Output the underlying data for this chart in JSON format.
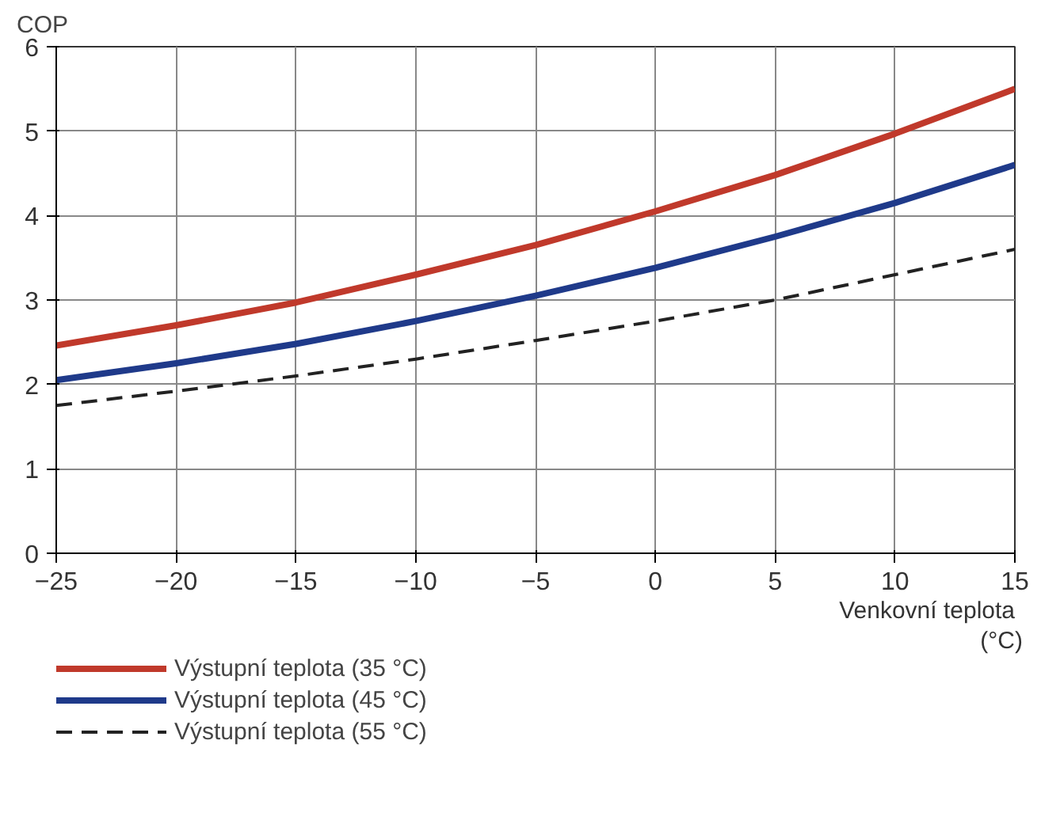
{
  "chart_data": {
    "type": "line",
    "ylabel": "COP",
    "xlabel": "Venkovní teplota\n(°C)",
    "x": [
      -25,
      -20,
      -15,
      -10,
      -5,
      0,
      5,
      10,
      15
    ],
    "series": [
      {
        "name": "Výstupní teplota (35 °C)",
        "color": "#c0392b",
        "line_style": "solid",
        "values": [
          2.46,
          2.7,
          2.97,
          3.3,
          3.65,
          4.05,
          4.48,
          4.97,
          5.5
        ]
      },
      {
        "name": "Výstupní teplota (45 °C)",
        "color": "#1f3a8a",
        "line_style": "solid",
        "values": [
          2.05,
          2.25,
          2.48,
          2.75,
          3.05,
          3.38,
          3.75,
          4.15,
          4.6
        ]
      },
      {
        "name": "Výstupní teplota (55 °C)",
        "color": "#222222",
        "line_style": "dashed",
        "values": [
          1.75,
          1.92,
          2.1,
          2.3,
          2.52,
          2.75,
          3.0,
          3.3,
          3.6
        ]
      }
    ],
    "xlim": [
      -25,
      15
    ],
    "xticks": [
      -25,
      -20,
      -15,
      -10,
      -5,
      0,
      5,
      10,
      15
    ],
    "ylim": [
      0,
      6
    ],
    "yticks": [
      0,
      1,
      2,
      3,
      4,
      5,
      6
    ],
    "grid": true,
    "legend": "bottom left"
  }
}
